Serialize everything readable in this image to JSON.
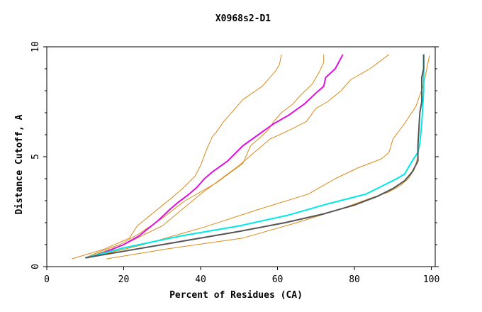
{
  "chart_data": {
    "type": "line",
    "title": "X0968s2-D1",
    "xlabel": "Percent of Residues (CA)",
    "ylabel": "Distance Cutoff, A",
    "xlim": [
      0,
      101
    ],
    "ylim": [
      0,
      10
    ],
    "x_ticks": [
      0,
      20,
      40,
      60,
      80,
      100
    ],
    "y_ticks": [
      0,
      5,
      10
    ],
    "grid": false,
    "series": [
      {
        "name": "orange-1",
        "color": "#d98a1a",
        "width": 1,
        "x": [
          6.5,
          15,
          21.5,
          23.5,
          33,
          35,
          38.5,
          40,
          41.5,
          43,
          44,
          46,
          47,
          51,
          53.5,
          56,
          59.5,
          60.5,
          61
        ],
        "y": [
          0.35,
          0.8,
          1.3,
          1.85,
          3.2,
          3.5,
          4.1,
          4.6,
          5.3,
          5.9,
          6.1,
          6.6,
          6.8,
          7.6,
          7.9,
          8.2,
          8.9,
          9.2,
          9.65
        ]
      },
      {
        "name": "orange-2",
        "color": "#d98a1a",
        "width": 1,
        "x": [
          10,
          14,
          19,
          24,
          30,
          36,
          44,
          51,
          53,
          55,
          57.5,
          59,
          61,
          64,
          66,
          69,
          71,
          72,
          72
        ],
        "y": [
          0.4,
          0.7,
          1.0,
          1.5,
          2.2,
          3.0,
          3.8,
          4.7,
          5.5,
          5.8,
          6.2,
          6.6,
          7.0,
          7.4,
          7.8,
          8.3,
          8.9,
          9.3,
          9.65
        ]
      },
      {
        "name": "orange-3",
        "color": "#d98a1a",
        "width": 1,
        "x": [
          11,
          20,
          30,
          40,
          50,
          54,
          58,
          63,
          67.5,
          70,
          73,
          76.5,
          79,
          84,
          89
        ],
        "y": [
          0.45,
          1.0,
          1.85,
          3.3,
          4.6,
          5.2,
          5.8,
          6.2,
          6.6,
          7.2,
          7.5,
          8.0,
          8.5,
          9.0,
          9.65
        ]
      },
      {
        "name": "orange-4",
        "color": "#d98a1a",
        "width": 1,
        "x": [
          12,
          25,
          41,
          55,
          68,
          75,
          81,
          87,
          89,
          90,
          93,
          96,
          98,
          99.5
        ],
        "y": [
          0.45,
          1.0,
          1.8,
          2.6,
          3.3,
          4.0,
          4.5,
          4.9,
          5.2,
          5.8,
          6.5,
          7.3,
          8.3,
          9.6
        ]
      },
      {
        "name": "orange-5",
        "color": "#d98a1a",
        "width": 1,
        "x": [
          15.5,
          31,
          51,
          65,
          76,
          84,
          89,
          92,
          94,
          95.5,
          96.5
        ],
        "y": [
          0.35,
          0.8,
          1.3,
          2.0,
          2.6,
          3.1,
          3.4,
          3.7,
          4.0,
          4.4,
          5.0
        ]
      },
      {
        "name": "magenta",
        "color": "#e010e0",
        "width": 2,
        "x": [
          10.5,
          15,
          20,
          24,
          29,
          32,
          34,
          37,
          39,
          41,
          43,
          47,
          51,
          55,
          59,
          63,
          67,
          70,
          72,
          72.5,
          75,
          77
        ],
        "y": [
          0.4,
          0.65,
          1.0,
          1.4,
          2.1,
          2.6,
          2.9,
          3.3,
          3.6,
          4.0,
          4.3,
          4.8,
          5.5,
          6.0,
          6.5,
          6.9,
          7.4,
          7.9,
          8.2,
          8.6,
          9.0,
          9.65
        ]
      },
      {
        "name": "cyan",
        "color": "#00e8e8",
        "width": 2,
        "x": [
          10,
          20,
          35,
          50,
          63,
          73,
          83,
          87,
          91,
          93,
          95,
          96.5,
          97,
          97.5,
          98,
          98
        ],
        "y": [
          0.4,
          0.85,
          1.4,
          1.85,
          2.35,
          2.85,
          3.3,
          3.65,
          4.0,
          4.2,
          4.8,
          5.2,
          5.6,
          6.5,
          8.0,
          9.65
        ]
      },
      {
        "name": "dark",
        "color": "#555555",
        "width": 2,
        "x": [
          10,
          20,
          35,
          50,
          62,
          72,
          80,
          86,
          90,
          93,
          95,
          96.5,
          96.5,
          97,
          97.5,
          97.5,
          98,
          98
        ],
        "y": [
          0.4,
          0.7,
          1.15,
          1.6,
          2.0,
          2.4,
          2.8,
          3.2,
          3.55,
          3.9,
          4.3,
          4.8,
          5.5,
          7.0,
          7.5,
          8.6,
          9.0,
          9.65
        ]
      }
    ]
  }
}
